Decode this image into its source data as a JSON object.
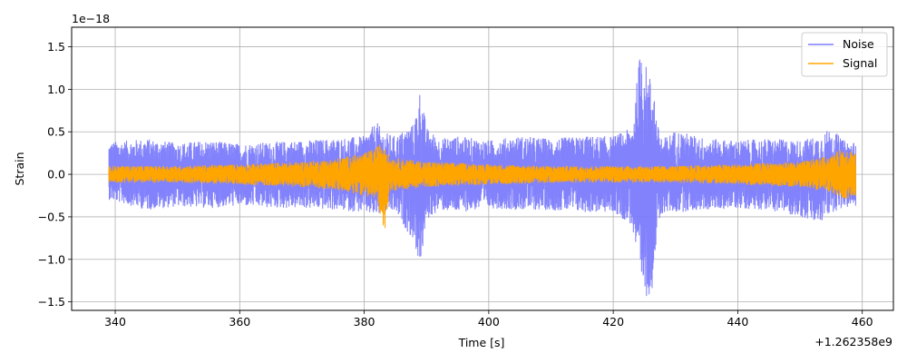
{
  "chart_data": {
    "type": "line",
    "title": "",
    "xlabel": "Time [s]",
    "ylabel": "Strain",
    "x_offset_label": "+1.262358e9",
    "y_scale_label": "1e−18",
    "xlim": [
      333,
      465
    ],
    "ylim": [
      -1.6,
      1.73
    ],
    "xticks": [
      340,
      360,
      380,
      400,
      420,
      440,
      460
    ],
    "xtick_labels": [
      "340",
      "360",
      "380",
      "400",
      "420",
      "440",
      "460"
    ],
    "yticks": [
      -1.5,
      -1.0,
      -0.5,
      0.0,
      0.5,
      1.0,
      1.5
    ],
    "ytick_labels": [
      "−1.5",
      "−1.0",
      "−0.5",
      "0.0",
      "0.5",
      "1.0",
      "1.5"
    ],
    "grid": true,
    "legend_position": "top-right",
    "x_range": [
      339,
      459
    ],
    "series": [
      {
        "name": "Noise",
        "color": "#7b7bfc",
        "envelope": {
          "x": [
            339,
            345,
            350,
            355,
            360,
            365,
            370,
            375,
            380,
            382,
            383,
            385,
            388,
            389,
            390,
            392,
            395,
            400,
            405,
            410,
            415,
            420,
            423,
            424.5,
            425.5,
            426.5,
            427,
            428,
            430,
            435,
            440,
            445,
            450,
            453,
            455,
            457,
            459
          ],
          "upper": [
            0.38,
            0.42,
            0.37,
            0.4,
            0.36,
            0.38,
            0.4,
            0.42,
            0.45,
            0.62,
            0.5,
            0.45,
            0.6,
            1.02,
            0.55,
            0.42,
            0.45,
            0.4,
            0.45,
            0.42,
            0.45,
            0.45,
            0.55,
            1.58,
            1.2,
            1.1,
            0.6,
            0.42,
            0.52,
            0.42,
            0.4,
            0.42,
            0.4,
            0.45,
            0.55,
            0.4,
            0.38
          ],
          "lower": [
            -0.3,
            -0.42,
            -0.38,
            -0.4,
            -0.37,
            -0.4,
            -0.4,
            -0.42,
            -0.45,
            -0.5,
            -0.45,
            -0.45,
            -0.8,
            -1.1,
            -0.55,
            -0.42,
            -0.45,
            -0.4,
            -0.42,
            -0.42,
            -0.45,
            -0.45,
            -0.6,
            -1.4,
            -1.46,
            -1.3,
            -0.7,
            -0.45,
            -0.45,
            -0.42,
            -0.4,
            -0.42,
            -0.5,
            -0.6,
            -0.45,
            -0.4,
            -0.38
          ]
        }
      },
      {
        "name": "Signal",
        "color": "#ffa500",
        "envelope": {
          "x": [
            339,
            350,
            360,
            370,
            375,
            380,
            382,
            383.3,
            384,
            390,
            400,
            410,
            420,
            430,
            440,
            450,
            455,
            457,
            459
          ],
          "upper": [
            0.1,
            0.1,
            0.12,
            0.15,
            0.18,
            0.25,
            0.32,
            0.42,
            0.2,
            0.15,
            0.12,
            0.1,
            0.1,
            0.1,
            0.12,
            0.15,
            0.22,
            0.32,
            0.28
          ],
          "lower": [
            -0.1,
            -0.1,
            -0.12,
            -0.15,
            -0.18,
            -0.25,
            -0.3,
            -0.7,
            -0.2,
            -0.15,
            -0.12,
            -0.1,
            -0.1,
            -0.1,
            -0.12,
            -0.15,
            -0.22,
            -0.3,
            -0.25
          ]
        }
      }
    ]
  }
}
